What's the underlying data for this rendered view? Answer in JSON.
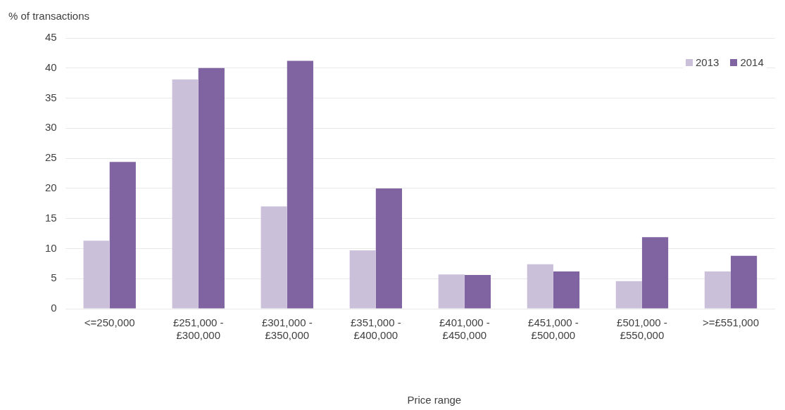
{
  "chart_data": {
    "type": "bar",
    "ylabel": "% of transactions",
    "xlabel": "Price range",
    "categories": [
      "<=250,000",
      "£251,000 - £300,000",
      "£301,000 - £350,000",
      "£351,000 - £400,000",
      "£401,000 - £450,000",
      "£451,000 - £500,000",
      "£501,000 - £550,000",
      ">=£551,000"
    ],
    "series": [
      {
        "name": "2013",
        "color": "#cbc0da",
        "values": [
          11.3,
          38.1,
          17.0,
          9.7,
          5.7,
          7.4,
          4.6,
          6.2
        ]
      },
      {
        "name": "2014",
        "color": "#8064a2",
        "values": [
          24.4,
          40.0,
          41.2,
          20.0,
          5.6,
          6.2,
          11.9,
          8.8
        ]
      }
    ],
    "ylim": [
      0,
      45
    ],
    "yticks": [
      0,
      5,
      10,
      15,
      20,
      25,
      30,
      35,
      40,
      45
    ],
    "grid": "y",
    "legend": "top right"
  }
}
